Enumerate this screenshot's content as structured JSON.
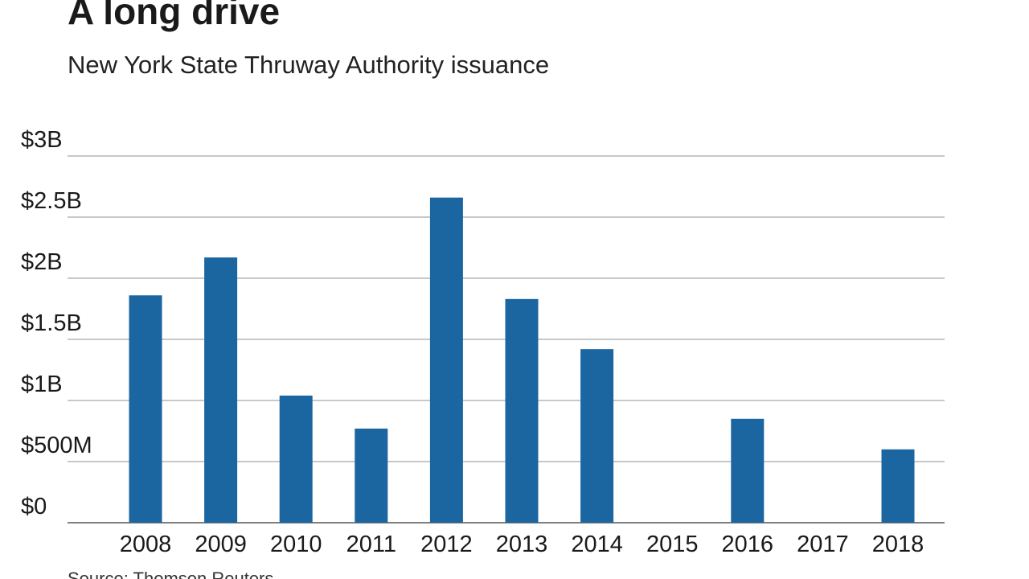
{
  "title": "A long drive",
  "subtitle": "New York State Thruway Authority issuance",
  "source": "Source: Thomson Reuters",
  "chart_data": {
    "type": "bar",
    "title": "A long drive",
    "subtitle": "New York State Thruway Authority issuance",
    "xlabel": "",
    "ylabel": "",
    "categories": [
      "2008",
      "2009",
      "2010",
      "2011",
      "2012",
      "2013",
      "2014",
      "2015",
      "2016",
      "2017",
      "2018"
    ],
    "values": [
      1860000000,
      2170000000,
      1040000000,
      770000000,
      2660000000,
      1830000000,
      1420000000,
      0,
      850000000,
      0,
      600000000
    ],
    "ylim": [
      0,
      3000000000
    ],
    "yticks": [
      0,
      500000000,
      1000000000,
      1500000000,
      2000000000,
      2500000000,
      3000000000
    ],
    "ytick_labels": [
      "$0",
      "$500M",
      "$1B",
      "$1.5B",
      "$2B",
      "$2.5B",
      "$3B"
    ],
    "grid": true,
    "legend": "none",
    "bar_color": "#1b65a1"
  }
}
